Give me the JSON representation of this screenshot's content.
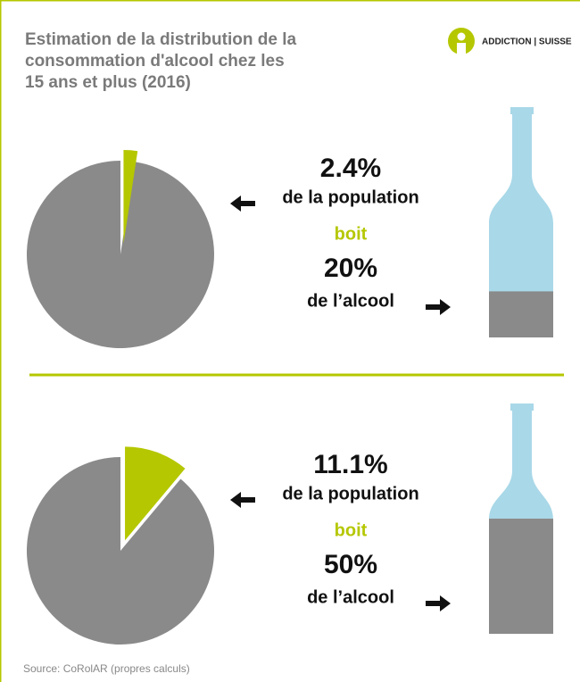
{
  "title": [
    "Estimation de la distribution de la",
    "consommation d'alcool chez les",
    "15 ans et plus (2016)"
  ],
  "logo": "ADDICTION | SUISSE",
  "source": "Source: CoRolAR (propres calculs)",
  "colors": {
    "accent": "#b5c700",
    "rest": "#8a8a8a",
    "bottle": "#a9d8e8"
  },
  "panels": [
    {
      "population": 2.4,
      "population_label": "2.4%",
      "population_text": "de la population",
      "verb": "boit",
      "alcohol": 20,
      "alcohol_label": "20%",
      "alcohol_text": "de l’alcool"
    },
    {
      "population": 11.1,
      "population_label": "11.1%",
      "population_text": "de la population",
      "verb": "boit",
      "alcohol": 50,
      "alcohol_label": "50%",
      "alcohol_text": "de l’alcool"
    }
  ]
}
